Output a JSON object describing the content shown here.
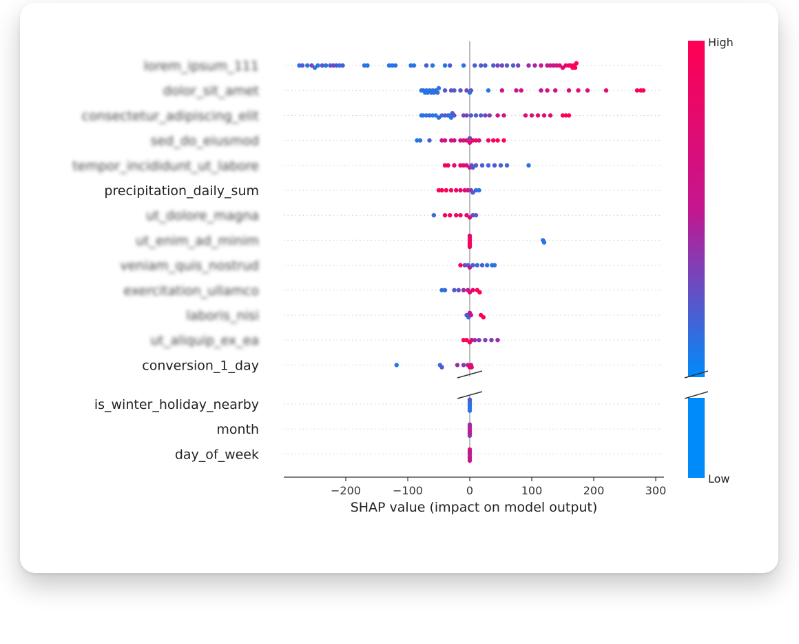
{
  "chart_data": {
    "type": "scatter",
    "subtype": "shap-beeswarm-summary",
    "xlabel": "SHAP value (impact on model output)",
    "xlim": [
      -300,
      310
    ],
    "xticks": [
      -200,
      -100,
      0,
      100,
      200,
      300
    ],
    "xtick_labels": [
      "−200",
      "−100",
      "0",
      "100",
      "200",
      "300"
    ],
    "colorbar": {
      "high_label": "High",
      "low_label": "Low",
      "high_color": "#ff0052",
      "mid_color": "#c4168f",
      "low_color": "#008bfb"
    },
    "features": [
      {
        "name": "lorem_ipsum_111",
        "blurred": true,
        "points": [
          [
            -275,
            0.1
          ],
          [
            -270,
            0.2
          ],
          [
            -262,
            0.1
          ],
          [
            -255,
            0.3
          ],
          [
            -250,
            0.1
          ],
          [
            -245,
            0.1
          ],
          [
            -238,
            0.2
          ],
          [
            -232,
            0.1
          ],
          [
            -225,
            0.2
          ],
          [
            -220,
            0.3
          ],
          [
            -215,
            0.2
          ],
          [
            -210,
            0.1
          ],
          [
            -205,
            0.2
          ],
          [
            -170,
            0.1
          ],
          [
            -165,
            0.1
          ],
          [
            -130,
            0.1
          ],
          [
            -125,
            0.1
          ],
          [
            -120,
            0.1
          ],
          [
            -95,
            0.1
          ],
          [
            -90,
            0.1
          ],
          [
            -70,
            0.2
          ],
          [
            -60,
            0.1
          ],
          [
            -40,
            0.1
          ],
          [
            -32,
            0.2
          ],
          [
            -10,
            0.1
          ],
          [
            8,
            0.2
          ],
          [
            18,
            0.2
          ],
          [
            25,
            0.2
          ],
          [
            38,
            0.2
          ],
          [
            45,
            0.3
          ],
          [
            52,
            0.3
          ],
          [
            60,
            0.2
          ],
          [
            70,
            0.2
          ],
          [
            78,
            0.3
          ],
          [
            95,
            0.4
          ],
          [
            105,
            0.4
          ],
          [
            115,
            0.5
          ],
          [
            125,
            0.5
          ],
          [
            130,
            0.5
          ],
          [
            135,
            0.6
          ],
          [
            140,
            0.6
          ],
          [
            145,
            0.7
          ],
          [
            150,
            0.8
          ],
          [
            155,
            0.8
          ],
          [
            160,
            0.9
          ],
          [
            163,
            0.9
          ],
          [
            166,
            0.95
          ],
          [
            168,
            0.95
          ],
          [
            170,
            1.0
          ],
          [
            172,
            1.0
          ]
        ]
      },
      {
        "name": "dolor_sit_amet",
        "blurred": true,
        "points": [
          [
            -78,
            0.1
          ],
          [
            -75,
            0.1
          ],
          [
            -72,
            0.1
          ],
          [
            -70,
            0.1
          ],
          [
            -68,
            0.1
          ],
          [
            -65,
            0.1
          ],
          [
            -62,
            0.15
          ],
          [
            -60,
            0.1
          ],
          [
            -58,
            0.1
          ],
          [
            -55,
            0.15
          ],
          [
            -52,
            0.15
          ],
          [
            -50,
            0.1
          ],
          [
            -40,
            0.2
          ],
          [
            -30,
            0.25
          ],
          [
            -25,
            0.2
          ],
          [
            -15,
            0.25
          ],
          [
            -5,
            0.3
          ],
          [
            0,
            0.1
          ],
          [
            2,
            0.2
          ],
          [
            30,
            0.1
          ],
          [
            52,
            0.55
          ],
          [
            75,
            0.55
          ],
          [
            83,
            0.6
          ],
          [
            115,
            0.55
          ],
          [
            125,
            0.6
          ],
          [
            138,
            0.6
          ],
          [
            160,
            0.7
          ],
          [
            175,
            0.75
          ],
          [
            190,
            0.7
          ],
          [
            220,
            0.75
          ],
          [
            270,
            0.95
          ],
          [
            276,
            0.95
          ],
          [
            280,
            1.0
          ]
        ]
      },
      {
        "name": "consectetur_adipiscing_elit",
        "blurred": true,
        "points": [
          [
            -78,
            0.1
          ],
          [
            -75,
            0.1
          ],
          [
            -70,
            0.1
          ],
          [
            -65,
            0.15
          ],
          [
            -60,
            0.1
          ],
          [
            -55,
            0.1
          ],
          [
            -50,
            0.15
          ],
          [
            -45,
            0.15
          ],
          [
            -40,
            0.2
          ],
          [
            -35,
            0.2
          ],
          [
            -32,
            0.1
          ],
          [
            -30,
            0.1
          ],
          [
            -28,
            0.2
          ],
          [
            -25,
            0.25
          ],
          [
            -10,
            0.3
          ],
          [
            -5,
            0.3
          ],
          [
            2,
            0.2
          ],
          [
            10,
            0.2
          ],
          [
            18,
            0.2
          ],
          [
            25,
            0.3
          ],
          [
            32,
            0.35
          ],
          [
            45,
            0.55
          ],
          [
            55,
            0.6
          ],
          [
            90,
            0.7
          ],
          [
            100,
            0.7
          ],
          [
            110,
            0.75
          ],
          [
            120,
            0.75
          ],
          [
            130,
            0.8
          ],
          [
            150,
            0.9
          ],
          [
            155,
            0.95
          ],
          [
            160,
            1.0
          ]
        ]
      },
      {
        "name": "sed_do_eiusmod",
        "blurred": true,
        "points": [
          [
            -85,
            0.1
          ],
          [
            -80,
            0.1
          ],
          [
            -65,
            0.2
          ],
          [
            -45,
            0.55
          ],
          [
            -40,
            0.6
          ],
          [
            -30,
            0.6
          ],
          [
            -25,
            0.6
          ],
          [
            -15,
            0.65
          ],
          [
            -10,
            0.7
          ],
          [
            -5,
            0.65
          ],
          [
            0,
            0.75
          ],
          [
            0,
            0.3
          ],
          [
            5,
            0.8
          ],
          [
            10,
            0.8
          ],
          [
            15,
            0.7
          ],
          [
            30,
            0.9
          ],
          [
            38,
            0.95
          ],
          [
            45,
            0.95
          ],
          [
            55,
            1.0
          ]
        ]
      },
      {
        "name": "tempor_incididunt_ut_labore",
        "blurred": true,
        "points": [
          [
            -40,
            0.95
          ],
          [
            -35,
            0.9
          ],
          [
            -25,
            0.85
          ],
          [
            -15,
            0.8
          ],
          [
            -10,
            0.75
          ],
          [
            -5,
            0.7
          ],
          [
            0,
            0.6
          ],
          [
            3,
            0.3
          ],
          [
            5,
            0.2
          ],
          [
            10,
            0.2
          ],
          [
            20,
            0.2
          ],
          [
            30,
            0.15
          ],
          [
            40,
            0.2
          ],
          [
            50,
            0.2
          ],
          [
            60,
            0.15
          ],
          [
            95,
            0.1
          ]
        ]
      },
      {
        "name": "precipitation_daily_sum",
        "blurred": false,
        "points": [
          [
            -50,
            1.0
          ],
          [
            -45,
            0.95
          ],
          [
            -38,
            0.9
          ],
          [
            -30,
            0.9
          ],
          [
            -22,
            0.85
          ],
          [
            -15,
            0.8
          ],
          [
            -8,
            0.75
          ],
          [
            -3,
            0.65
          ],
          [
            2,
            0.35
          ],
          [
            5,
            0.2
          ],
          [
            10,
            0.15
          ],
          [
            15,
            0.1
          ]
        ]
      },
      {
        "name": "ut_dolore_magna",
        "blurred": true,
        "points": [
          [
            -58,
            0.15
          ],
          [
            -40,
            0.9
          ],
          [
            -32,
            1.0
          ],
          [
            -22,
            0.85
          ],
          [
            -15,
            0.9
          ],
          [
            -5,
            0.8
          ],
          [
            0,
            0.6
          ],
          [
            5,
            0.3
          ],
          [
            10,
            0.2
          ]
        ]
      },
      {
        "name": "ut_enim_ad_minim",
        "blurred": true,
        "points": [
          [
            0,
            0.95
          ],
          [
            0,
            0.85
          ],
          [
            0,
            0.75
          ],
          [
            0,
            0.9
          ],
          [
            0,
            0.8
          ],
          [
            0,
            0.95
          ],
          [
            118,
            0.1
          ],
          [
            120,
            0.1
          ]
        ]
      },
      {
        "name": "veniam_quis_nostrud",
        "blurred": true,
        "points": [
          [
            -15,
            0.9
          ],
          [
            -8,
            0.3
          ],
          [
            -3,
            0.2
          ],
          [
            0,
            0.5
          ],
          [
            5,
            0.2
          ],
          [
            12,
            0.15
          ],
          [
            20,
            0.2
          ],
          [
            28,
            0.1
          ],
          [
            36,
            0.15
          ],
          [
            40,
            0.1
          ]
        ]
      },
      {
        "name": "exercitation_ullamco",
        "blurred": true,
        "points": [
          [
            -45,
            0.1
          ],
          [
            -40,
            0.15
          ],
          [
            -25,
            0.2
          ],
          [
            -18,
            0.25
          ],
          [
            -10,
            0.4
          ],
          [
            -3,
            0.55
          ],
          [
            0,
            0.75
          ],
          [
            5,
            0.85
          ],
          [
            12,
            0.95
          ],
          [
            16,
            1.0
          ]
        ]
      },
      {
        "name": "laboris_nisi",
        "blurred": true,
        "points": [
          [
            -5,
            0.2
          ],
          [
            -2,
            0.15
          ],
          [
            0,
            0.6
          ],
          [
            2,
            0.5
          ],
          [
            18,
            1.0
          ],
          [
            22,
            1.0
          ]
        ]
      },
      {
        "name": "ut_aliquip_ex_ea",
        "blurred": true,
        "points": [
          [
            -10,
            0.9
          ],
          [
            -5,
            0.95
          ],
          [
            0,
            1.0
          ],
          [
            3,
            0.7
          ],
          [
            8,
            0.4
          ],
          [
            15,
            0.35
          ],
          [
            25,
            0.3
          ],
          [
            35,
            0.35
          ],
          [
            45,
            0.4
          ]
        ]
      },
      {
        "name": "conversion_1_day",
        "blurred": false,
        "points": [
          [
            -118,
            0.1
          ],
          [
            -48,
            0.15
          ],
          [
            -45,
            0.2
          ],
          [
            -20,
            0.4
          ],
          [
            -10,
            0.35
          ],
          [
            -3,
            0.5
          ],
          [
            0,
            0.7
          ],
          [
            2,
            0.6
          ],
          [
            3,
            0.8
          ]
        ]
      },
      {
        "name": "is_winter_holiday_nearby",
        "blurred": false,
        "points": [
          [
            0,
            0.1
          ],
          [
            0,
            0.15
          ],
          [
            0,
            0.12
          ],
          [
            0,
            0.1
          ],
          [
            0,
            0.2
          ],
          [
            0,
            0.1
          ]
        ]
      },
      {
        "name": "month",
        "blurred": false,
        "points": [
          [
            0,
            0.3
          ],
          [
            0,
            0.6
          ],
          [
            0,
            0.45
          ],
          [
            0,
            0.55
          ],
          [
            0,
            0.4
          ],
          [
            0,
            0.35
          ]
        ]
      },
      {
        "name": "day_of_week",
        "blurred": false,
        "points": [
          [
            0,
            0.7
          ],
          [
            0,
            0.4
          ],
          [
            0,
            0.5
          ],
          [
            0,
            0.65
          ],
          [
            0,
            0.6
          ],
          [
            0,
            0.55
          ]
        ]
      }
    ]
  }
}
